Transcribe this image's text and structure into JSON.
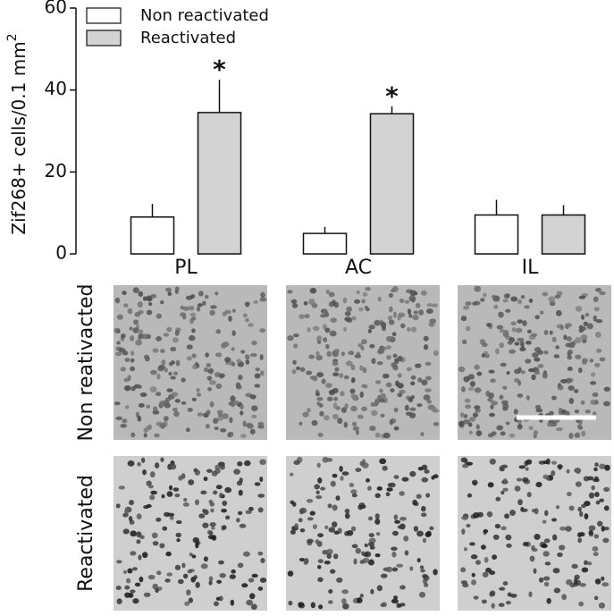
{
  "chart_data": {
    "type": "bar",
    "ylabel": "Zif268+ cells/0.1 mm",
    "ylabel_superscript": "2",
    "categories": [
      "PL",
      "AC",
      "IL"
    ],
    "series": [
      {
        "name": "Non reactivated",
        "color": "#ffffff",
        "values": [
          9,
          5,
          9.5
        ],
        "errors": [
          3.2,
          1.6,
          3.7
        ]
      },
      {
        "name": "Reactivated",
        "color": "#d3d3d3",
        "values": [
          34.5,
          34.2,
          9.5
        ],
        "errors": [
          8,
          1.8,
          2.4
        ]
      }
    ],
    "significance_markers": [
      "*",
      "*",
      null
    ],
    "ylim": [
      0,
      60
    ],
    "yticks": [
      0,
      20,
      40,
      60
    ],
    "legend": "top-left",
    "image_panel": {
      "row_labels": [
        "Non reativacted",
        "Reactivated"
      ]
    }
  }
}
